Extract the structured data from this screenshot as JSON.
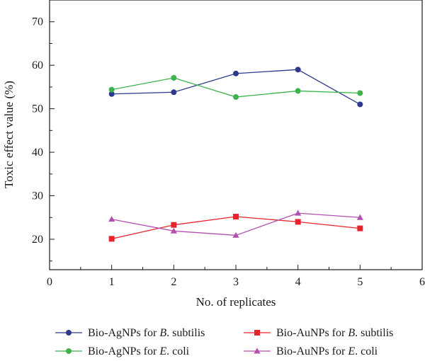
{
  "chart_data": {
    "type": "line",
    "title": "",
    "xlabel": "No. of replicates",
    "ylabel": "Toxic effect value (%)",
    "xlim": [
      0,
      6
    ],
    "ylim": [
      13,
      75
    ],
    "x_ticks": [
      "0",
      "1",
      "2",
      "3",
      "4",
      "5",
      "6"
    ],
    "y_ticks": [
      "20",
      "30",
      "40",
      "50",
      "60",
      "70"
    ],
    "grid": false,
    "legend_position": "bottom",
    "x": [
      1,
      2,
      3,
      4,
      5
    ],
    "series": [
      {
        "name": "Bio-AgNPs for B. subtilis",
        "name_prefix": "Bio-AgNPs for ",
        "name_italic": "B",
        "name_suffix": ". subtilis",
        "color": "#2b3a8f",
        "marker": "circle",
        "values": [
          53.4,
          53.8,
          58.1,
          59.0,
          51.0
        ]
      },
      {
        "name": "Bio-AgNPs for E. coli",
        "name_prefix": "Bio-AgNPs for ",
        "name_italic": "E",
        "name_suffix": ". coli",
        "color": "#3cb44b",
        "marker": "circle",
        "values": [
          54.4,
          57.1,
          52.7,
          54.1,
          53.6
        ]
      },
      {
        "name": "Bio-AuNPs for B. subtilis",
        "name_prefix": "Bio-AuNPs for ",
        "name_italic": "B",
        "name_suffix": ". subtilis",
        "color": "#e8242b",
        "marker": "square",
        "values": [
          20.1,
          23.3,
          25.2,
          24.0,
          22.5
        ]
      },
      {
        "name": "Bio-AuNPs for E. coli",
        "name_prefix": "Bio-AuNPs for ",
        "name_italic": "E",
        "name_suffix": ". coli",
        "color": "#b34fb0",
        "marker": "triangle",
        "values": [
          24.6,
          21.9,
          20.9,
          26.0,
          25.0
        ]
      }
    ]
  }
}
